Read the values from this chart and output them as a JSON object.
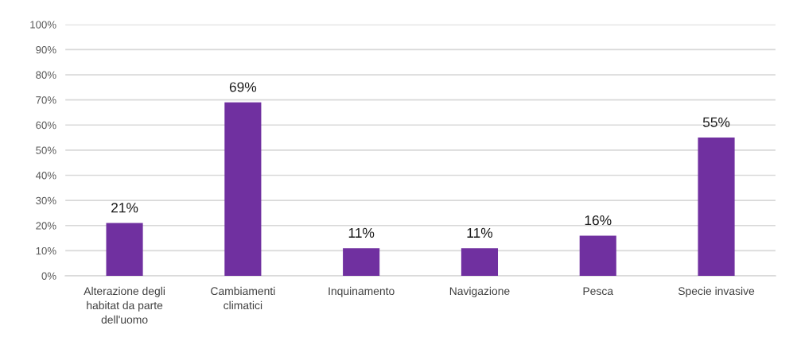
{
  "chart_data": {
    "type": "bar",
    "categories": [
      "Alterazione degli\nhabitat da parte\ndell'uomo",
      "Cambiamenti\nclimatici",
      "Inquinamento",
      "Navigazione",
      "Pesca",
      "Specie invasive"
    ],
    "values": [
      21,
      69,
      11,
      11,
      16,
      55
    ],
    "value_labels": [
      "21%",
      "69%",
      "11%",
      "11%",
      "16%",
      "55%"
    ],
    "color": "#7030a0",
    "ylim": [
      0,
      100
    ],
    "yticks": [
      {
        "value": 0,
        "label": "0%"
      },
      {
        "value": 10,
        "label": "10%"
      },
      {
        "value": 20,
        "label": "20%"
      },
      {
        "value": 30,
        "label": "30%"
      },
      {
        "value": 40,
        "label": "40%"
      },
      {
        "value": 50,
        "label": "50%"
      },
      {
        "value": 60,
        "label": "60%"
      },
      {
        "value": 70,
        "label": "70%"
      },
      {
        "value": 80,
        "label": "80%"
      },
      {
        "value": 90,
        "label": "90%"
      },
      {
        "value": 100,
        "label": "100%"
      }
    ],
    "grid": "y"
  }
}
